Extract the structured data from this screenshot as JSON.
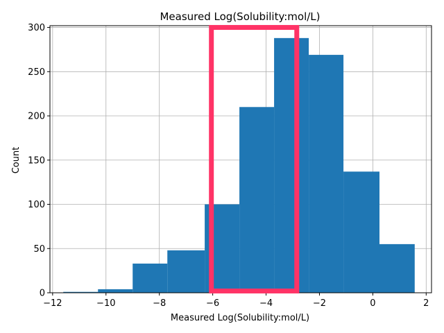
{
  "chart_data": {
    "type": "bar",
    "subtype": "histogram",
    "title": "Measured Log(Solubility:mol/L)",
    "xlabel": "Measured Log(Solubility:mol/L)",
    "ylabel": "Count",
    "xlim": [
      -12.1,
      2.2
    ],
    "ylim": [
      0,
      302
    ],
    "xticks": [
      -12,
      -10,
      -8,
      -6,
      -4,
      -2,
      0,
      2
    ],
    "xtick_labels": [
      "−12",
      "−10",
      "−8",
      "−6",
      "−4",
      "−2",
      "0",
      "2"
    ],
    "yticks": [
      0,
      50,
      100,
      150,
      200,
      250,
      300
    ],
    "ytick_labels": [
      "0",
      "50",
      "100",
      "150",
      "200",
      "250",
      "300"
    ],
    "grid": true,
    "bar_color": "#1f77b4",
    "bins": [
      {
        "x0": -11.6,
        "x1": -10.3,
        "count": 1
      },
      {
        "x0": -10.3,
        "x1": -9.0,
        "count": 4
      },
      {
        "x0": -9.0,
        "x1": -7.7,
        "count": 33
      },
      {
        "x0": -7.7,
        "x1": -6.3,
        "count": 48
      },
      {
        "x0": -6.3,
        "x1": -5.0,
        "count": 100
      },
      {
        "x0": -5.0,
        "x1": -3.7,
        "count": 210
      },
      {
        "x0": -3.7,
        "x1": -2.4,
        "count": 288
      },
      {
        "x0": -2.4,
        "x1": -1.1,
        "count": 269
      },
      {
        "x0": -1.1,
        "x1": 0.25,
        "count": 137
      },
      {
        "x0": 0.25,
        "x1": 1.57,
        "count": 55
      }
    ],
    "highlight": {
      "x0": -6.05,
      "x1": -2.85,
      "y0": 2,
      "y1": 300,
      "color": "#ff3366"
    }
  }
}
